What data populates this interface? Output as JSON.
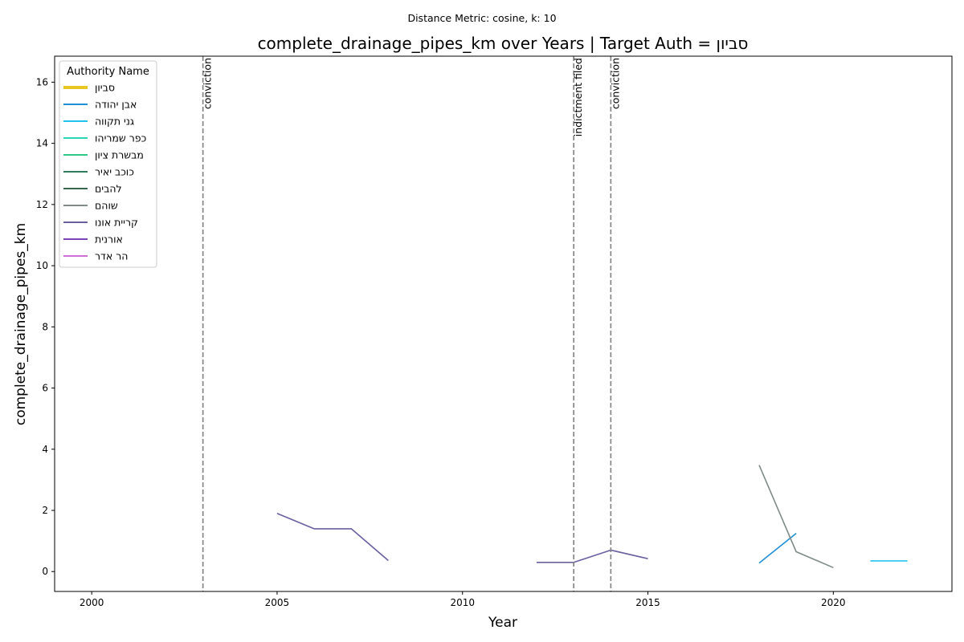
{
  "chart_data": {
    "type": "line",
    "suptitle": "Distance Metric: cosine, k: 10",
    "title": "complete_drainage_pipes_km over Years | Target Auth = סביון",
    "xlabel": "Year",
    "ylabel": "complete_drainage_pipes_km",
    "xlim": [
      1999,
      2023.2
    ],
    "ylim": [
      -0.65,
      16.85
    ],
    "xticks": [
      2000,
      2005,
      2010,
      2015,
      2020
    ],
    "yticks": [
      0,
      2,
      4,
      6,
      8,
      10,
      12,
      14,
      16
    ],
    "grid": false,
    "legend": {
      "title": "Authority Name",
      "placement": "top-left"
    },
    "events": [
      {
        "x": 2003,
        "label": "conviction"
      },
      {
        "x": 2013,
        "label": "indictment filed"
      },
      {
        "x": 2014,
        "label": "conviction"
      }
    ],
    "series": [
      {
        "name": "סביון",
        "color": "#e8c720",
        "target": true,
        "segments": []
      },
      {
        "name": "אבן יהודה",
        "color": "#1f8fd8",
        "segments": [
          [
            [
              2018,
              0.28
            ],
            [
              2019,
              1.25
            ]
          ]
        ]
      },
      {
        "name": "גני תקווה",
        "color": "#22c3ef",
        "segments": [
          [
            [
              2021,
              0.35
            ],
            [
              2022,
              0.35
            ]
          ]
        ]
      },
      {
        "name": "כפר שמריהו",
        "color": "#2ad8b8",
        "segments": []
      },
      {
        "name": "מבשרת ציון",
        "color": "#2fc98a",
        "segments": []
      },
      {
        "name": "כוכב יאיר",
        "color": "#2e7d5c",
        "segments": []
      },
      {
        "name": "להבים",
        "color": "#3a6650",
        "segments": []
      },
      {
        "name": "שוהם",
        "color": "#7f8c86",
        "segments": [
          [
            [
              2018,
              3.48
            ],
            [
              2019,
              0.65
            ],
            [
              2020,
              0.13
            ]
          ]
        ]
      },
      {
        "name": "קריית אונו",
        "color": "#6a5fa0",
        "segments": [
          [
            [
              2005,
              1.9
            ],
            [
              2006,
              1.4
            ],
            [
              2007,
              1.4
            ],
            [
              2008,
              0.36
            ]
          ],
          [
            [
              2012,
              0.3
            ],
            [
              2013,
              0.3
            ],
            [
              2014,
              0.7
            ],
            [
              2015,
              0.42
            ]
          ]
        ]
      },
      {
        "name": "אורנית",
        "color": "#7a45b8",
        "segments": []
      },
      {
        "name": "הר אדר",
        "color": "#cf6fd6",
        "segments": []
      }
    ]
  }
}
